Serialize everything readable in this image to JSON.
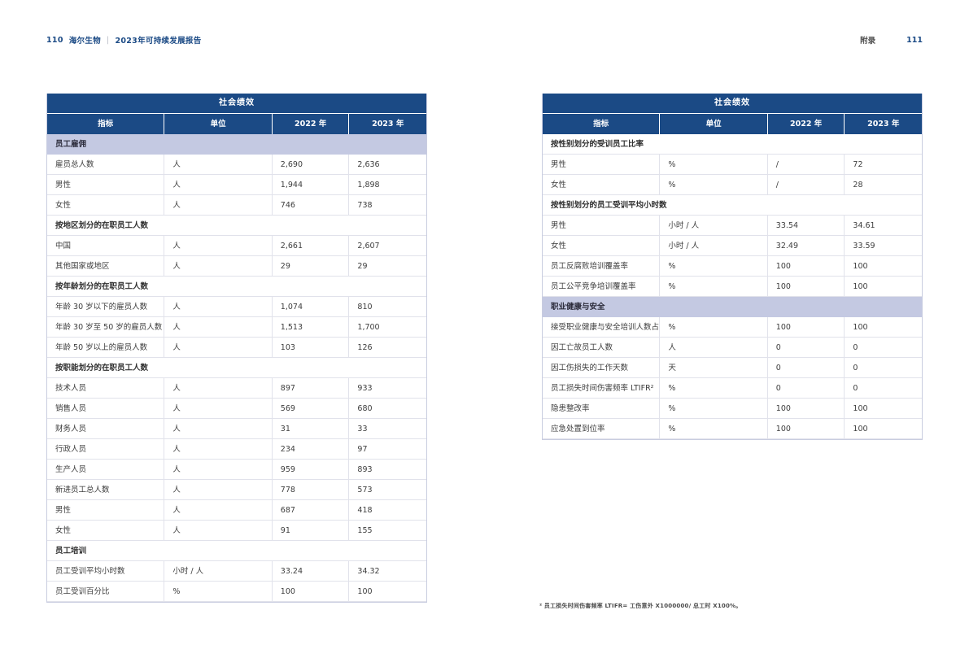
{
  "page_header": {
    "left": {
      "page_number": "110",
      "brand": "海尔生物",
      "divider": "|",
      "report_title": "2023年可持续发展报告"
    },
    "right": {
      "appendix_label": "附录",
      "page_number": "111"
    }
  },
  "colors": {
    "header_navy": "#1b4a85",
    "category_lavender": "#c4c9e2",
    "grid_line": "#e1e2eb"
  },
  "tables": [
    {
      "title": "社会绩效",
      "columns": [
        "指标",
        "单位",
        "2022 年",
        "2023 年"
      ],
      "rows": [
        {
          "type": "category",
          "label": "员工雇佣"
        },
        {
          "type": "data",
          "cells": [
            "雇员总人数",
            "人",
            "2,690",
            "2,636"
          ]
        },
        {
          "type": "data",
          "cells": [
            "男性",
            "人",
            "1,944",
            "1,898"
          ]
        },
        {
          "type": "data",
          "cells": [
            "女性",
            "人",
            "746",
            "738"
          ]
        },
        {
          "type": "section",
          "label": "按地区划分的在职员工人数"
        },
        {
          "type": "data",
          "cells": [
            "中国",
            "人",
            "2,661",
            "2,607"
          ]
        },
        {
          "type": "data",
          "cells": [
            "其他国家或地区",
            "人",
            "29",
            "29"
          ]
        },
        {
          "type": "section",
          "label": "按年龄划分的在职员工人数"
        },
        {
          "type": "data",
          "cells": [
            "年龄 30 岁以下的雇员人数",
            "人",
            "1,074",
            "810"
          ]
        },
        {
          "type": "data",
          "cells": [
            "年龄 30 岁至 50 岁的雇员人数",
            "人",
            "1,513",
            "1,700"
          ]
        },
        {
          "type": "data",
          "cells": [
            "年龄 50 岁以上的雇员人数",
            "人",
            "103",
            "126"
          ]
        },
        {
          "type": "section",
          "label": "按职能划分的在职员工人数"
        },
        {
          "type": "data",
          "cells": [
            "技术人员",
            "人",
            "897",
            "933"
          ]
        },
        {
          "type": "data",
          "cells": [
            "销售人员",
            "人",
            "569",
            "680"
          ]
        },
        {
          "type": "data",
          "cells": [
            "财务人员",
            "人",
            "31",
            "33"
          ]
        },
        {
          "type": "data",
          "cells": [
            "行政人员",
            "人",
            "234",
            "97"
          ]
        },
        {
          "type": "data",
          "cells": [
            "生产人员",
            "人",
            "959",
            "893"
          ]
        },
        {
          "type": "data",
          "cells": [
            "新进员工总人数",
            "人",
            "778",
            "573"
          ]
        },
        {
          "type": "data",
          "cells": [
            "男性",
            "人",
            "687",
            "418"
          ]
        },
        {
          "type": "data",
          "cells": [
            "女性",
            "人",
            "91",
            "155"
          ]
        },
        {
          "type": "section",
          "label": "员工培训"
        },
        {
          "type": "data",
          "cells": [
            "员工受训平均小时数",
            "小时 / 人",
            "33.24",
            "34.32"
          ]
        },
        {
          "type": "data",
          "cells": [
            "员工受训百分比",
            "%",
            "100",
            "100"
          ]
        }
      ]
    },
    {
      "title": "社会绩效",
      "columns": [
        "指标",
        "单位",
        "2022 年",
        "2023 年"
      ],
      "rows": [
        {
          "type": "section",
          "label": "按性别划分的受训员工比率"
        },
        {
          "type": "data",
          "cells": [
            "男性",
            "%",
            "/",
            "72"
          ]
        },
        {
          "type": "data",
          "cells": [
            "女性",
            "%",
            "/",
            "28"
          ]
        },
        {
          "type": "section",
          "label": "按性别划分的员工受训平均小时数"
        },
        {
          "type": "data",
          "cells": [
            "男性",
            "小时 / 人",
            "33.54",
            "34.61"
          ]
        },
        {
          "type": "data",
          "cells": [
            "女性",
            "小时 / 人",
            "32.49",
            "33.59"
          ]
        },
        {
          "type": "data",
          "cells": [
            "员工反腐败培训覆盖率",
            "%",
            "100",
            "100"
          ]
        },
        {
          "type": "data",
          "cells": [
            "员工公平竞争培训覆盖率",
            "%",
            "100",
            "100"
          ]
        },
        {
          "type": "category",
          "label": "职业健康与安全"
        },
        {
          "type": "data",
          "cells": [
            "接受职业健康与安全培训人数占比",
            "%",
            "100",
            "100"
          ]
        },
        {
          "type": "data",
          "cells": [
            "因工亡故员工人数",
            "人",
            "0",
            "0"
          ]
        },
        {
          "type": "data",
          "cells": [
            "因工伤损失的工作天数",
            "天",
            "0",
            "0"
          ]
        },
        {
          "type": "data",
          "cells": [
            "员工损失时间伤害频率 LTIFR²",
            "%",
            "0",
            "0"
          ]
        },
        {
          "type": "data",
          "cells": [
            "隐患整改率",
            "%",
            "100",
            "100"
          ]
        },
        {
          "type": "data",
          "cells": [
            "应急处置到位率",
            "%",
            "100",
            "100"
          ]
        }
      ]
    }
  ],
  "footnote": "² 员工损失时间伤害频率 LTIFR= 工伤意外 X1000000/ 总工时 X100%。"
}
